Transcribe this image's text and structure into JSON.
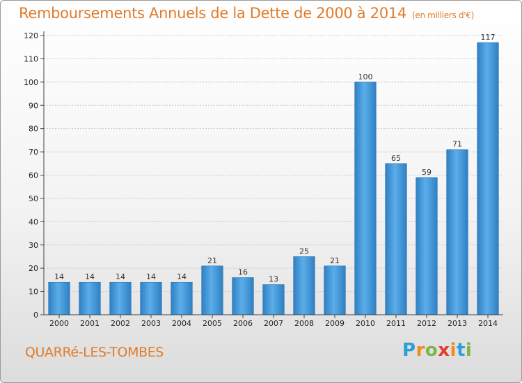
{
  "header": {
    "title": "Remboursements Annuels de la Dette de 2000 à 2014",
    "unit": "(en milliers d'€)"
  },
  "footer": {
    "commune": "QUARRé-LES-TOMBES",
    "logo": "Proxiti",
    "logo_colors": [
      "#2a9fd8",
      "#f28a1c",
      "#7ab648",
      "#e03c31",
      "#f28a1c",
      "#2a9fd8",
      "#7ab648"
    ]
  },
  "chart_data": {
    "type": "bar",
    "categories": [
      "2000",
      "2001",
      "2002",
      "2003",
      "2004",
      "2005",
      "2006",
      "2007",
      "2008",
      "2009",
      "2010",
      "2011",
      "2012",
      "2013",
      "2014"
    ],
    "values": [
      14,
      14,
      14,
      14,
      14,
      21,
      16,
      13,
      25,
      21,
      100,
      65,
      59,
      71,
      117
    ],
    "title": "Remboursements Annuels de la Dette de 2000 à 2014",
    "ylim": [
      0,
      120
    ],
    "yticks": [
      0,
      10,
      20,
      30,
      40,
      50,
      60,
      70,
      80,
      90,
      100,
      110,
      120
    ],
    "grid": true,
    "bar_color": "#3d8fd6"
  }
}
